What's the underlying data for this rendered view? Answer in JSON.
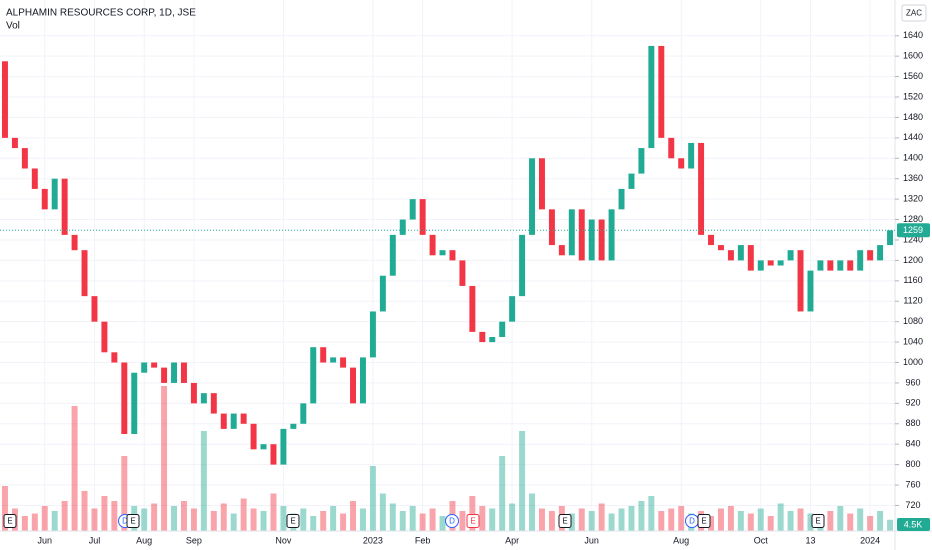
{
  "chart_data": {
    "type": "candlestick",
    "title": "ALPHAMIN RESOURCES CORP, 1D, JSE",
    "volume_title": "Vol",
    "currency": "ZAC",
    "categories": [
      null,
      null,
      null,
      null,
      "Jun",
      null,
      null,
      null,
      null,
      "Jul",
      null,
      null,
      null,
      null,
      "Aug",
      null,
      null,
      null,
      null,
      "Sep",
      null,
      null,
      null,
      null,
      null,
      null,
      null,
      null,
      "Nov",
      null,
      null,
      null,
      null,
      null,
      null,
      null,
      null,
      "2023",
      null,
      null,
      null,
      null,
      "Feb",
      null,
      null,
      null,
      null,
      null,
      null,
      null,
      null,
      "Apr",
      null,
      null,
      null,
      null,
      null,
      null,
      null,
      "Jun",
      null,
      null,
      null,
      null,
      null,
      null,
      null,
      null,
      "Aug",
      null,
      null,
      null,
      null,
      null,
      null,
      null,
      "Oct",
      null,
      null,
      null,
      null,
      "13",
      null,
      null,
      null,
      null,
      null,
      "2024",
      null,
      null
    ],
    "open": [
      1590,
      1440,
      1420,
      1380,
      1340,
      1300,
      1360,
      1250,
      1220,
      1130,
      1080,
      1020,
      1000,
      860,
      980,
      1000,
      990,
      960,
      1000,
      960,
      920,
      940,
      900,
      870,
      900,
      880,
      830,
      840,
      800,
      870,
      880,
      920,
      1030,
      1000,
      1010,
      990,
      920,
      1010,
      1100,
      1170,
      1250,
      1280,
      1320,
      1250,
      1210,
      1220,
      1200,
      1150,
      1060,
      1040,
      1050,
      1080,
      1130,
      1250,
      1400,
      1300,
      1230,
      1210,
      1300,
      1200,
      1280,
      1200,
      1300,
      1340,
      1370,
      1420,
      1620,
      1440,
      1400,
      1380,
      1430,
      1250,
      1230,
      1220,
      1200,
      1230,
      1180,
      1200,
      1190,
      1200,
      1220,
      1100,
      1180,
      1200,
      1180,
      1200,
      1180,
      1220,
      1200,
      1230
    ],
    "close": [
      1440,
      1420,
      1380,
      1340,
      1300,
      1360,
      1250,
      1220,
      1130,
      1080,
      1020,
      1000,
      860,
      980,
      1000,
      990,
      960,
      1000,
      960,
      920,
      940,
      900,
      870,
      900,
      880,
      830,
      840,
      800,
      870,
      880,
      920,
      1030,
      1000,
      1010,
      990,
      920,
      1010,
      1100,
      1170,
      1250,
      1280,
      1320,
      1250,
      1210,
      1220,
      1200,
      1150,
      1060,
      1040,
      1050,
      1080,
      1130,
      1250,
      1400,
      1300,
      1230,
      1210,
      1300,
      1200,
      1280,
      1200,
      1300,
      1340,
      1370,
      1420,
      1620,
      1440,
      1400,
      1380,
      1430,
      1250,
      1230,
      1220,
      1200,
      1230,
      1180,
      1200,
      1190,
      1200,
      1220,
      1100,
      1180,
      1200,
      1180,
      1200,
      1180,
      1220,
      1200,
      1230,
      1259
    ],
    "volume": [
      18000,
      9000,
      6000,
      7000,
      10000,
      8000,
      12000,
      50000,
      16000,
      9000,
      14000,
      12000,
      30000,
      10000,
      9000,
      11000,
      58000,
      10000,
      12000,
      9000,
      40000,
      8000,
      11000,
      7000,
      13000,
      9000,
      8000,
      15000,
      10000,
      7000,
      9000,
      6000,
      8000,
      10000,
      7000,
      12000,
      9000,
      26000,
      15000,
      11000,
      8000,
      10000,
      7000,
      9000,
      6000,
      12000,
      8000,
      14000,
      10000,
      9000,
      30000,
      11000,
      40000,
      15000,
      9000,
      8000,
      10000,
      7000,
      9000,
      8000,
      11000,
      7000,
      9000,
      10000,
      12000,
      14000,
      8000,
      9000,
      10000,
      7000,
      8000,
      6000,
      9000,
      10000,
      8000,
      7000,
      9000,
      6000,
      11000,
      8000,
      9000,
      7000,
      6000,
      8000,
      10000,
      7000,
      9000,
      6000,
      8000,
      4500
    ],
    "volume_last_label": "4.5K",
    "volume_ylim": [
      0,
      60000
    ],
    "up_color": "#22ab94",
    "down_color": "#f23645",
    "ylim": [
      670,
      1710
    ],
    "yticks": [
      720,
      760,
      800,
      840,
      880,
      920,
      960,
      1000,
      1040,
      1080,
      1120,
      1160,
      1200,
      1240,
      1280,
      1320,
      1360,
      1400,
      1440,
      1480,
      1520,
      1560,
      1600,
      1640
    ],
    "grid": true,
    "events": [
      "E",
      "D",
      "E",
      "E",
      "D",
      "E",
      "E",
      "D",
      "E",
      "E"
    ]
  }
}
